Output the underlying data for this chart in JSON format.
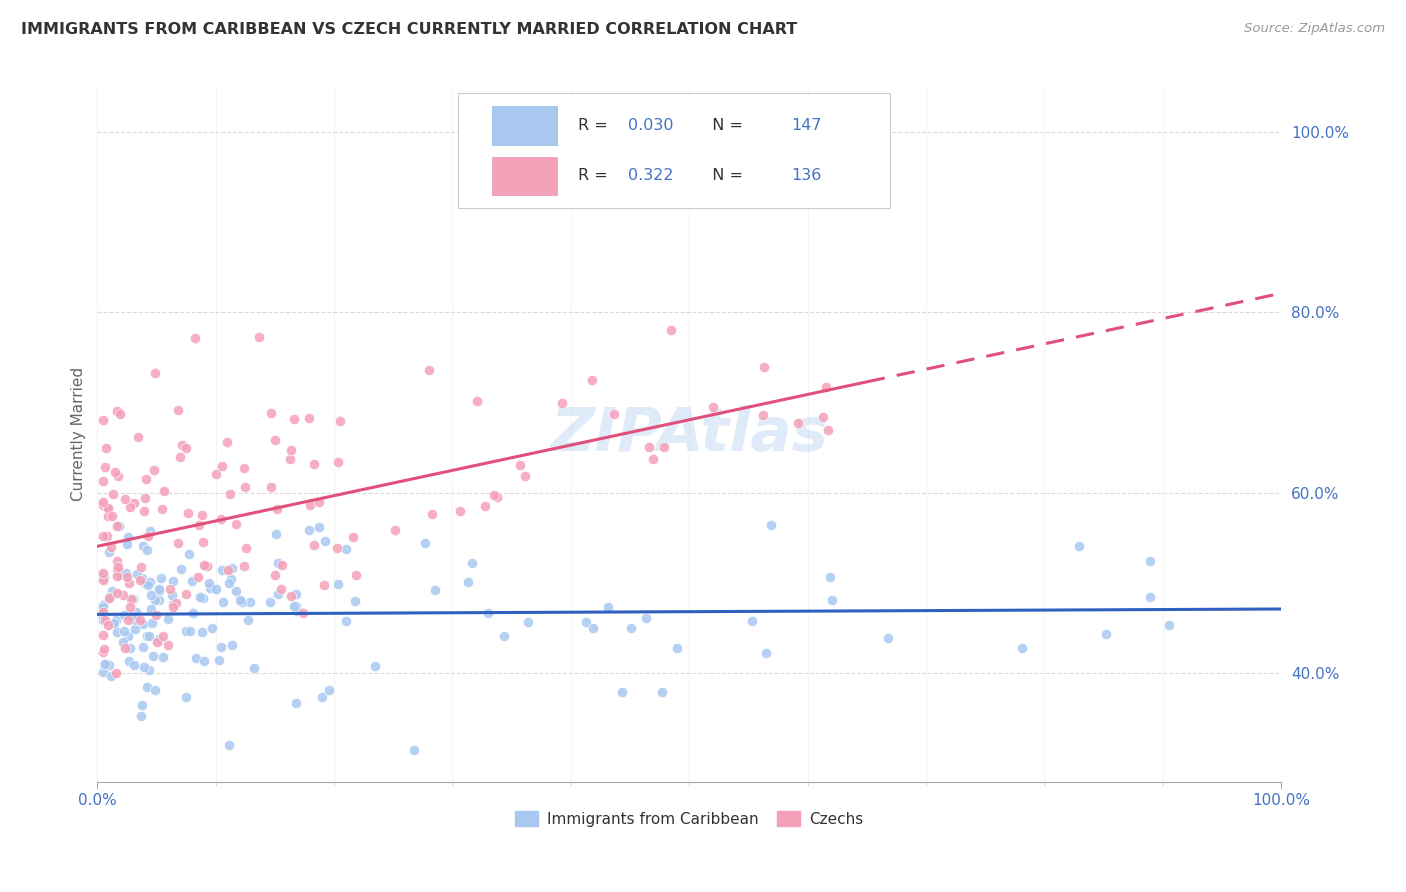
{
  "title": "IMMIGRANTS FROM CARIBBEAN VS CZECH CURRENTLY MARRIED CORRELATION CHART",
  "source": "Source: ZipAtlas.com",
  "ylabel": "Currently Married",
  "xlim": [
    0.0,
    1.0
  ],
  "ylim": [
    0.28,
    1.05
  ],
  "legend1_label": "Immigrants from Caribbean",
  "legend2_label": "Czechs",
  "blue_R": 0.03,
  "blue_N": 147,
  "pink_R": 0.322,
  "pink_N": 136,
  "blue_color": "#A8C8F0",
  "pink_color": "#F4A0B8",
  "blue_line_color": "#3060C0",
  "pink_line_color": "#E0507A",
  "watermark": "ZIPAtlas",
  "background_color": "#FFFFFF",
  "grid_color": "#CCCCCC",
  "legend_text_color": "#333333",
  "value_color": "#4472C4",
  "axis_color": "#4472C4",
  "title_color": "#333333",
  "source_color": "#999999",
  "ylabel_color": "#666666"
}
